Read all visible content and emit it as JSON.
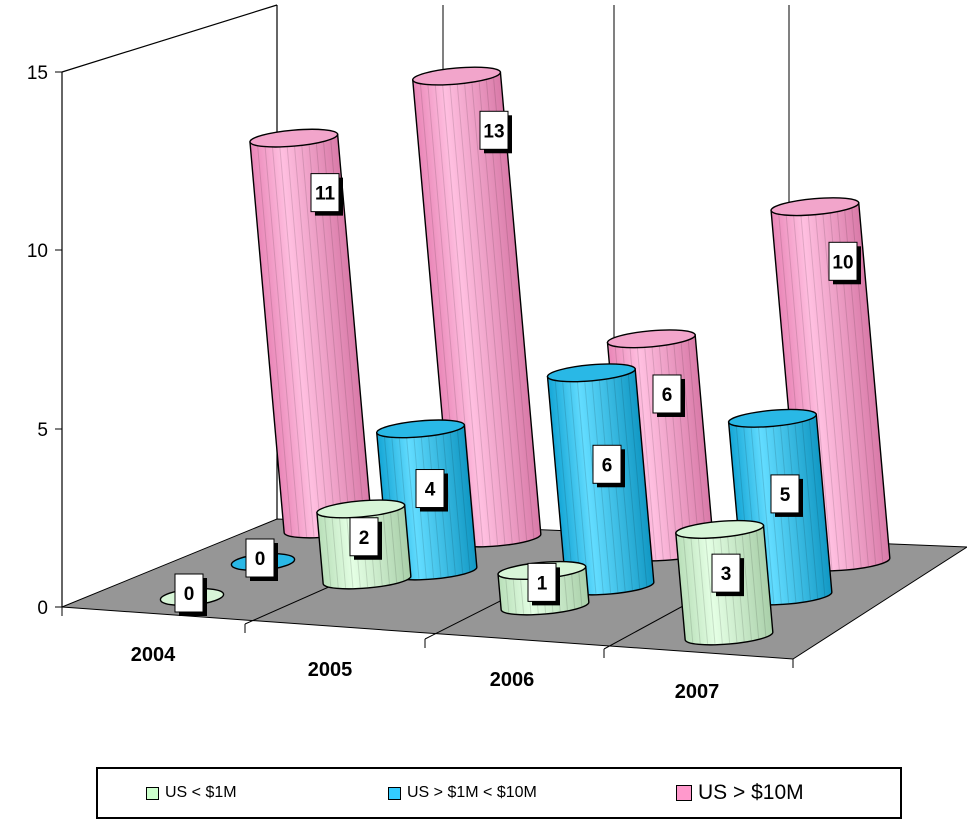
{
  "chart_data": {
    "type": "bar",
    "style": "3d-cylinder",
    "title": "",
    "xlabel": "",
    "ylabel": "",
    "ylim": [
      0,
      15
    ],
    "y_ticks": [
      "0",
      "5",
      "10",
      "15"
    ],
    "categories": [
      "2004",
      "2005",
      "2006",
      "2007"
    ],
    "series": [
      {
        "name": "US < $1M",
        "values": [
          0,
          2,
          1,
          3
        ],
        "color": "#CCFFCC"
      },
      {
        "name": "US > $1M < $10M",
        "values": [
          0,
          4,
          6,
          5
        ],
        "color": "#33CCFF"
      },
      {
        "name": "US > $10M",
        "values": [
          11,
          13,
          6,
          10
        ],
        "color": "#FF99CC"
      }
    ],
    "legend_position": "bottom",
    "gridlines": "vertical back wall"
  }
}
